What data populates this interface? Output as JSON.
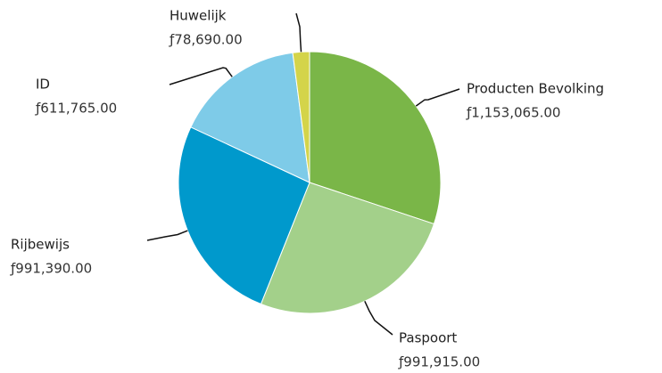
{
  "chart_data": {
    "type": "pie",
    "categories": [
      "Producten Bevolking",
      "Paspoort",
      "Rijbewijs",
      "ID",
      "Huwelijk"
    ],
    "values": [
      1153065,
      991915,
      991390,
      611765,
      78690
    ],
    "value_labels": [
      "ƒ1,153,065.00",
      "ƒ991,915.00",
      "ƒ991,390.00",
      "ƒ611,765.00",
      "ƒ78,690.00"
    ],
    "colors": [
      "#7ab648",
      "#a3d08a",
      "#0099cc",
      "#7ecbe8",
      "#d4d44a"
    ]
  }
}
